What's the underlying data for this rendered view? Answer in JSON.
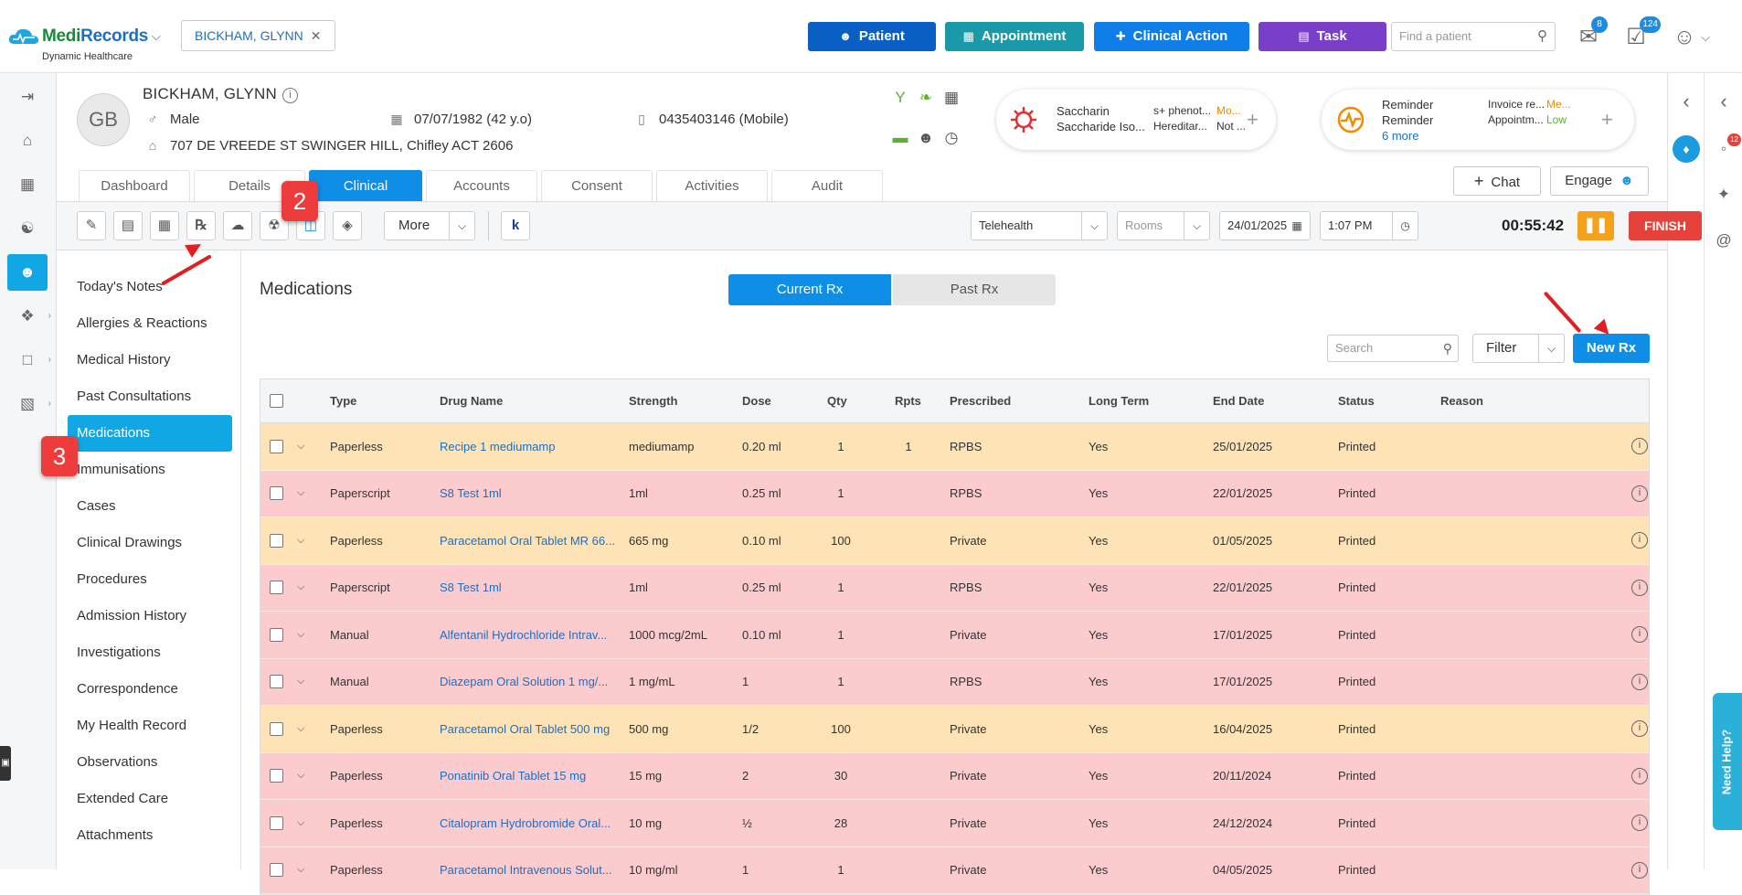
{
  "app": {
    "brand_a": "Medi",
    "brand_b": "Records",
    "subtitle": "Dynamic Healthcare"
  },
  "patient_tab": {
    "label": "BICKHAM, GLYNN"
  },
  "top_buttons": {
    "patient": {
      "label": "Patient",
      "color": "#0a5fc4"
    },
    "appointment": {
      "label": "Appointment",
      "color": "#1a9aa8"
    },
    "clinical_action": {
      "label": "Clinical Action",
      "color": "#0f7ee8"
    },
    "task": {
      "label": "Task",
      "color": "#7a3fc9"
    }
  },
  "find_patient": {
    "placeholder": "Find a patient"
  },
  "badges": {
    "mail": "8",
    "tasks": "124"
  },
  "patient": {
    "initials": "GB",
    "name": "BICKHAM, GLYNN",
    "gender": "Male",
    "dob": "07/07/1982 (42 y.o)",
    "phone": "0435403146 (Mobile)",
    "address": "707 DE VREEDE ST SWINGER HILL, Chifley ACT 2606"
  },
  "allergy_card": {
    "a1": "Saccharin",
    "a2": "Saccharide Iso...",
    "b1": "s+ phenot...",
    "b1s": "Mo...",
    "b2": "Hereditar...",
    "b2s": "Not ..."
  },
  "reminder_card": {
    "r1": "Reminder",
    "r2": "Reminder",
    "more": "6 more",
    "c1": "Invoice re...",
    "c1s": "Me...",
    "c2": "Appointm...",
    "c2s": "Low"
  },
  "nav_tabs": [
    "Dashboard",
    "Details",
    "Clinical",
    "Accounts",
    "Consent",
    "Activities",
    "Audit"
  ],
  "chat_label": "Chat",
  "engage_label": "Engage",
  "toolbar": {
    "more_label": "More",
    "telehealth": "Telehealth",
    "rooms": "Rooms",
    "date": "24/01/2025",
    "time": "1:07 PM",
    "timer": "00:55:42",
    "finish_label": "FINISH"
  },
  "side_nav": [
    "Today's Notes",
    "Allergies & Reactions",
    "Medical History",
    "Past Consultations",
    "Medications",
    "Immunisations",
    "Cases",
    "Clinical Drawings",
    "Procedures",
    "Admission History",
    "Investigations",
    "Correspondence",
    "My Health Record",
    "Observations",
    "Extended Care",
    "Attachments"
  ],
  "main": {
    "title": "Medications",
    "seg_current": "Current Rx",
    "seg_past": "Past Rx",
    "search_placeholder": "Search",
    "filter_label": "Filter",
    "new_rx_label": "New Rx"
  },
  "table": {
    "headers": [
      "Type",
      "Drug Name",
      "Strength",
      "Dose",
      "Qty",
      "Rpts",
      "Prescribed",
      "Long Term",
      "End Date",
      "Status",
      "Reason"
    ],
    "rows": [
      {
        "type": "Paperless",
        "drug": "Recipe 1 mediumamp",
        "strength": "mediumamp",
        "dose": "0.20 ml",
        "qty": "1",
        "rpts": "1",
        "prescribed": "RPBS",
        "long_term": "Yes",
        "end_date": "25/01/2025",
        "status": "Printed",
        "reason": "",
        "tone": "o"
      },
      {
        "type": "Paperscript",
        "drug": "S8 Test 1ml",
        "strength": "1ml",
        "dose": "0.25 ml",
        "qty": "1",
        "rpts": "",
        "prescribed": "RPBS",
        "long_term": "Yes",
        "end_date": "22/01/2025",
        "status": "Printed",
        "reason": "",
        "tone": "r"
      },
      {
        "type": "Paperless",
        "drug": "Paracetamol Oral Tablet MR 66...",
        "strength": "665 mg",
        "dose": "0.10 ml",
        "qty": "100",
        "rpts": "",
        "prescribed": "Private",
        "long_term": "Yes",
        "end_date": "01/05/2025",
        "status": "Printed",
        "reason": "",
        "tone": "o"
      },
      {
        "type": "Paperscript",
        "drug": "S8 Test 1ml",
        "strength": "1ml",
        "dose": "0.25 ml",
        "qty": "1",
        "rpts": "",
        "prescribed": "RPBS",
        "long_term": "Yes",
        "end_date": "22/01/2025",
        "status": "Printed",
        "reason": "",
        "tone": "r"
      },
      {
        "type": "Manual",
        "drug": "Alfentanil Hydrochloride Intrav...",
        "strength": "1000 mcg/2mL",
        "dose": "0.10 ml",
        "qty": "1",
        "rpts": "",
        "prescribed": "Private",
        "long_term": "Yes",
        "end_date": "17/01/2025",
        "status": "Printed",
        "reason": "",
        "tone": "r"
      },
      {
        "type": "Manual",
        "drug": "Diazepam Oral Solution 1 mg/...",
        "strength": "1 mg/mL",
        "dose": "1",
        "qty": "1",
        "rpts": "",
        "prescribed": "RPBS",
        "long_term": "Yes",
        "end_date": "17/01/2025",
        "status": "Printed",
        "reason": "",
        "tone": "r"
      },
      {
        "type": "Paperless",
        "drug": "Paracetamol Oral Tablet 500 mg",
        "strength": "500 mg",
        "dose": "1/2",
        "qty": "100",
        "rpts": "",
        "prescribed": "Private",
        "long_term": "Yes",
        "end_date": "16/04/2025",
        "status": "Printed",
        "reason": "",
        "tone": "o"
      },
      {
        "type": "Paperless",
        "drug": "Ponatinib Oral Tablet 15 mg",
        "strength": "15 mg",
        "dose": "2",
        "qty": "30",
        "rpts": "",
        "prescribed": "Private",
        "long_term": "Yes",
        "end_date": "20/11/2024",
        "status": "Printed",
        "reason": "",
        "tone": "r"
      },
      {
        "type": "Paperless",
        "drug": "Citalopram Hydrobromide Oral...",
        "strength": "10 mg",
        "dose": "½",
        "qty": "28",
        "rpts": "",
        "prescribed": "Private",
        "long_term": "Yes",
        "end_date": "24/12/2024",
        "status": "Printed",
        "reason": "",
        "tone": "r"
      },
      {
        "type": "Paperless",
        "drug": "Paracetamol Intravenous Solut...",
        "strength": "10 mg/ml",
        "dose": "1",
        "qty": "1",
        "rpts": "",
        "prescribed": "Private",
        "long_term": "Yes",
        "end_date": "04/05/2025",
        "status": "Printed",
        "reason": "",
        "tone": "r"
      }
    ]
  },
  "annotations": {
    "m2": "2",
    "m3": "3"
  },
  "right_rail": {
    "badge": "12"
  },
  "need_help": "Need Help?"
}
